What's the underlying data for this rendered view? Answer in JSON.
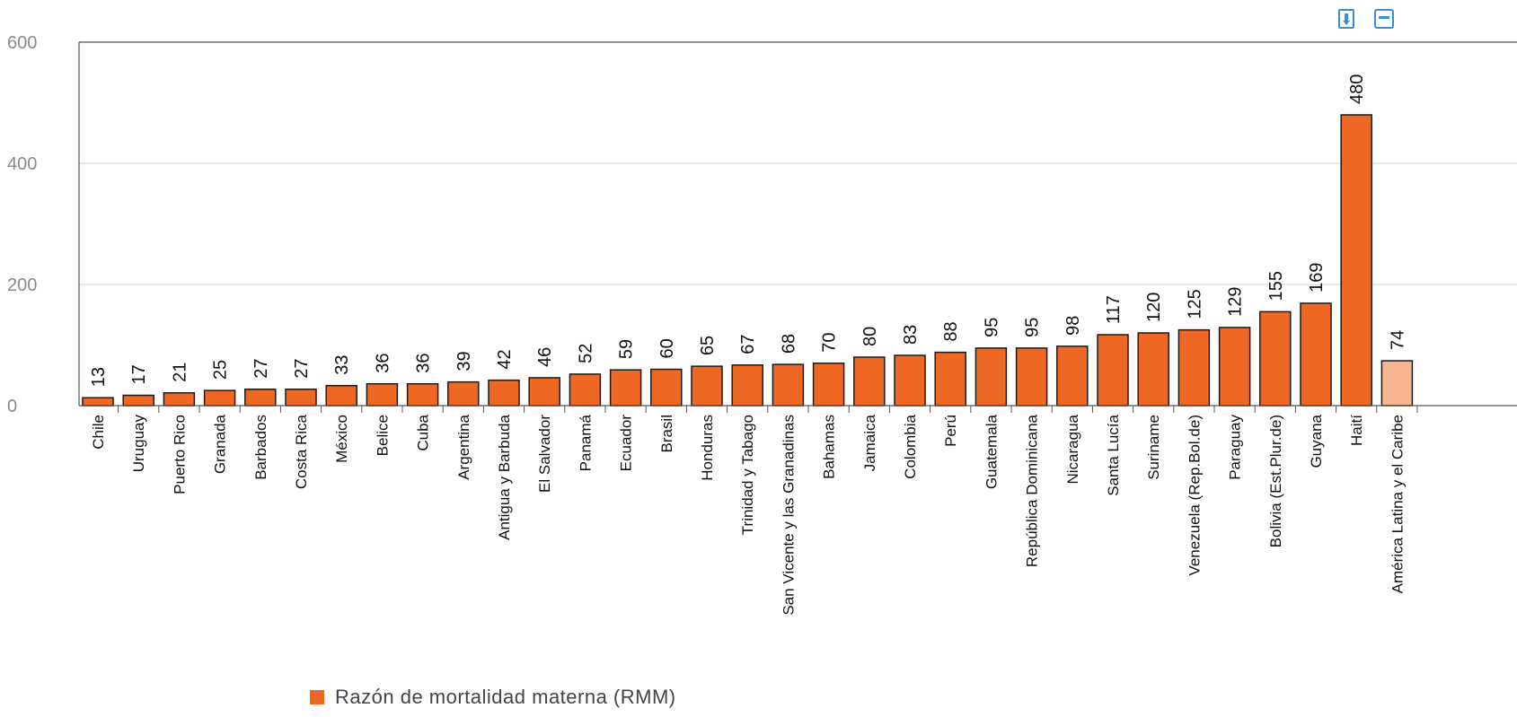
{
  "toolbar": {
    "download_icon": "download-icon",
    "print_icon": "print-icon",
    "accent_color": "#3b8fd6"
  },
  "chart_data": {
    "type": "bar",
    "categories": [
      "Chile",
      "Uruguay",
      "Puerto Rico",
      "Granada",
      "Barbados",
      "Costa Rica",
      "México",
      "Belice",
      "Cuba",
      "Argentina",
      "Antigua y Barbuda",
      "El Salvador",
      "Panamá",
      "Ecuador",
      "Brasil",
      "Honduras",
      "Trinidad y Tabago",
      "San Vicente y las Granadinas",
      "Bahamas",
      "Jamaica",
      "Colombia",
      "Perú",
      "Guatemala",
      "República Dominicana",
      "Nicaragua",
      "Santa Lucía",
      "Suriname",
      "Venezuela (Rep.Bol.de)",
      "Paraguay",
      "Bolivia (Est.Plur.de)",
      "Guyana",
      "Haití",
      "América Latina y el Caribe"
    ],
    "series": [
      {
        "name": "Razón de mortalidad materna (RMM)",
        "values": [
          13,
          17,
          21,
          25,
          27,
          27,
          33,
          36,
          36,
          39,
          42,
          46,
          52,
          59,
          60,
          65,
          67,
          68,
          70,
          80,
          83,
          88,
          95,
          95,
          98,
          117,
          120,
          125,
          129,
          155,
          169,
          480,
          74
        ]
      }
    ],
    "ylim": [
      0,
      600
    ],
    "yticks": [
      0,
      200,
      400,
      600
    ],
    "grid": true,
    "legend": "bottom-left",
    "colors": {
      "bar": "#ee6723",
      "highlight": "#f9b38f",
      "border": "#1a1a1a",
      "grid": "#d0d0d0"
    }
  }
}
